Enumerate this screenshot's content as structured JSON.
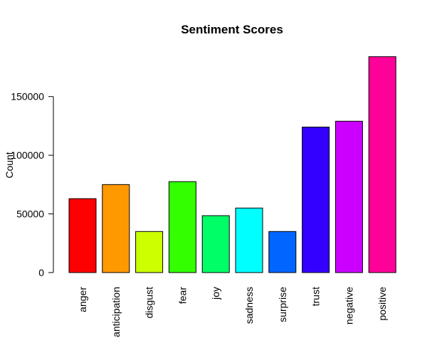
{
  "chart_data": {
    "type": "bar",
    "title": "Sentiment Scores",
    "xlabel": "",
    "ylabel": "Count",
    "categories": [
      "anger",
      "anticipation",
      "disgust",
      "fear",
      "joy",
      "sadness",
      "surprise",
      "trust",
      "negative",
      "positive"
    ],
    "values": [
      63000,
      75000,
      35000,
      77500,
      48500,
      55000,
      35000,
      124000,
      129000,
      184000
    ],
    "colors": [
      "#FF0000",
      "#FF9900",
      "#CCFF00",
      "#33FF00",
      "#00FF66",
      "#00FFFF",
      "#0066FF",
      "#3300FF",
      "#CC00FF",
      "#FF0099"
    ],
    "ylim": [
      0,
      185000
    ],
    "yticks": [
      0,
      50000,
      100000,
      150000
    ],
    "ytick_labels": [
      "0",
      "50000",
      "100000",
      "150000"
    ],
    "grid": false,
    "legend": "none"
  }
}
